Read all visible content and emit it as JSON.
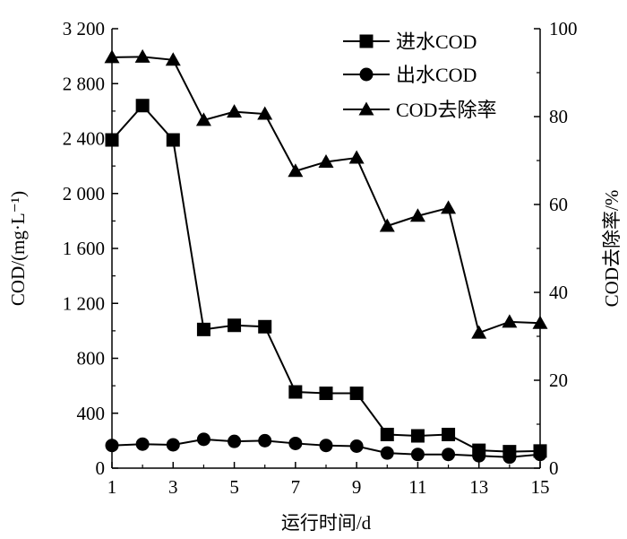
{
  "chart_data": {
    "type": "line",
    "xlabel": "运行时间/d",
    "ylabel_left": "COD/(mg·L⁻¹)",
    "ylabel_right": "COD去除率/%",
    "xlim": [
      1,
      15
    ],
    "ylim_left": [
      0,
      3200
    ],
    "ylim_right": [
      0,
      100
    ],
    "x_ticks": [
      1,
      3,
      5,
      7,
      9,
      11,
      13,
      15
    ],
    "y_left_ticks": [
      {
        "value": 0,
        "label": "0"
      },
      {
        "value": 400,
        "label": "400"
      },
      {
        "value": 800,
        "label": "800"
      },
      {
        "value": 1200,
        "label": "1 200"
      },
      {
        "value": 1600,
        "label": "1 600"
      },
      {
        "value": 2000,
        "label": "2 000"
      },
      {
        "value": 2400,
        "label": "2 400"
      },
      {
        "value": 2800,
        "label": "2 800"
      },
      {
        "value": 3200,
        "label": "3 200"
      }
    ],
    "y_right_ticks": [
      {
        "value": 0,
        "label": "0"
      },
      {
        "value": 20,
        "label": "20"
      },
      {
        "value": 40,
        "label": "40"
      },
      {
        "value": 60,
        "label": "60"
      },
      {
        "value": 80,
        "label": "80"
      },
      {
        "value": 100,
        "label": "100"
      }
    ],
    "x": [
      1,
      2,
      3,
      4,
      5,
      6,
      7,
      8,
      9,
      10,
      11,
      12,
      13,
      14,
      15
    ],
    "series": [
      {
        "name": "进水COD",
        "marker": "square",
        "axis": "left",
        "values": [
          2390,
          2640,
          2390,
          1010,
          1040,
          1030,
          555,
          545,
          545,
          245,
          235,
          245,
          130,
          120,
          125
        ]
      },
      {
        "name": "出水COD",
        "marker": "circle",
        "axis": "left",
        "values": [
          165,
          175,
          170,
          210,
          195,
          200,
          180,
          165,
          160,
          110,
          100,
          100,
          90,
          80,
          100
        ]
      },
      {
        "name": "COD去除率",
        "marker": "triangle",
        "axis": "right",
        "values": [
          93.5,
          93.6,
          92.9,
          79.2,
          81.1,
          80.6,
          67.6,
          69.7,
          70.6,
          55.1,
          57.4,
          59.2,
          30.8,
          33.3,
          33.0
        ]
      }
    ],
    "legend_position": "top-right",
    "grid": false
  }
}
